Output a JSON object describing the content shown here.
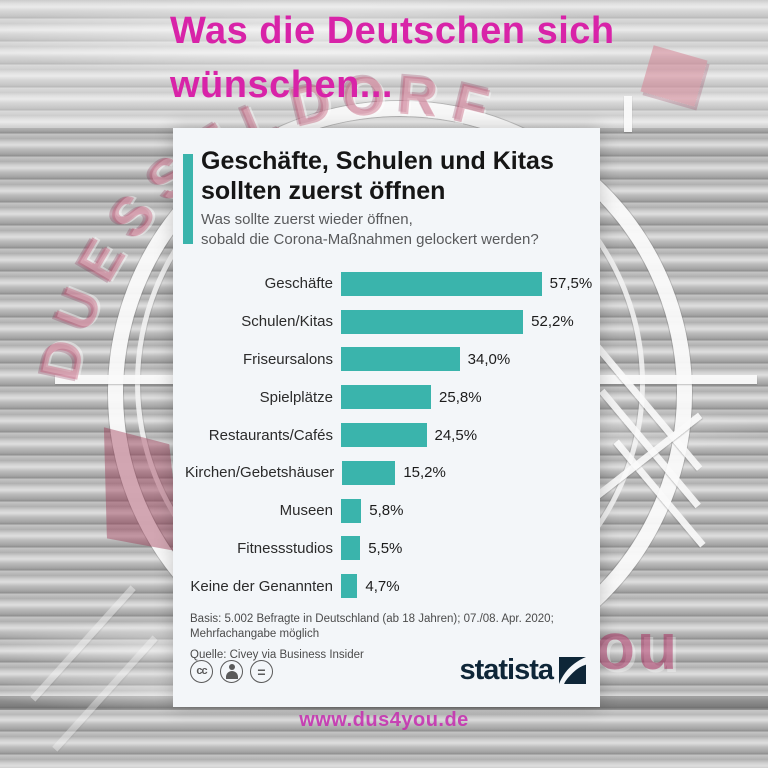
{
  "page": {
    "title_line1": "Was die Deutschen sich",
    "title_line2": "wünschen...",
    "website_url": "www.dus4you.de",
    "background": {
      "arc_watermark_text": "DUESSELDORF",
      "corner_watermark_text": "you"
    }
  },
  "infographic": {
    "headline_line1": "Geschäfte, Schulen und Kitas",
    "headline_line2": "sollten zuerst öffnen",
    "subtitle_line1": "Was sollte zuerst wieder öffnen,",
    "subtitle_line2": "sobald die Corona-Maßnahmen gelockert werden?",
    "note_line1": "Basis: 5.002 Befragte in Deutschland (ab 18 Jahren); 07./08. Apr. 2020;",
    "note_line2": "Mehrfachangabe möglich",
    "source_line": "Quelle: Civey via Business Insider",
    "license": {
      "cc_label": "cc",
      "nd_label": "="
    },
    "brand_name": "statista"
  },
  "chart_data": {
    "type": "bar",
    "orientation": "horizontal",
    "title": "Geschäfte, Schulen und Kitas sollten zuerst öffnen",
    "subtitle": "Was sollte zuerst wieder öffnen, sobald die Corona-Maßnahmen gelockert werden?",
    "categories": [
      "Geschäfte",
      "Schulen/Kitas",
      "Friseursalons",
      "Spielplätze",
      "Restaurants/Cafés",
      "Kirchen/Gebetshäuser",
      "Museen",
      "Fitnessstudios",
      "Keine der Genannten"
    ],
    "values": [
      57.5,
      52.2,
      34.0,
      25.8,
      24.5,
      15.2,
      5.8,
      5.5,
      4.7
    ],
    "value_labels": [
      "57,5%",
      "52,2%",
      "34,0%",
      "25,8%",
      "24,5%",
      "15,2%",
      "5,8%",
      "5,5%",
      "4,7%"
    ],
    "unit": "%",
    "xlim": [
      0,
      60
    ],
    "grid": false,
    "legend": false,
    "bar_color": "#3ab4ac"
  },
  "colors": {
    "accent_teal": "#3ab4ac",
    "headline_magenta": "#d823a8",
    "statista_navy": "#0e2638",
    "card_background": "#f3f6f9"
  }
}
